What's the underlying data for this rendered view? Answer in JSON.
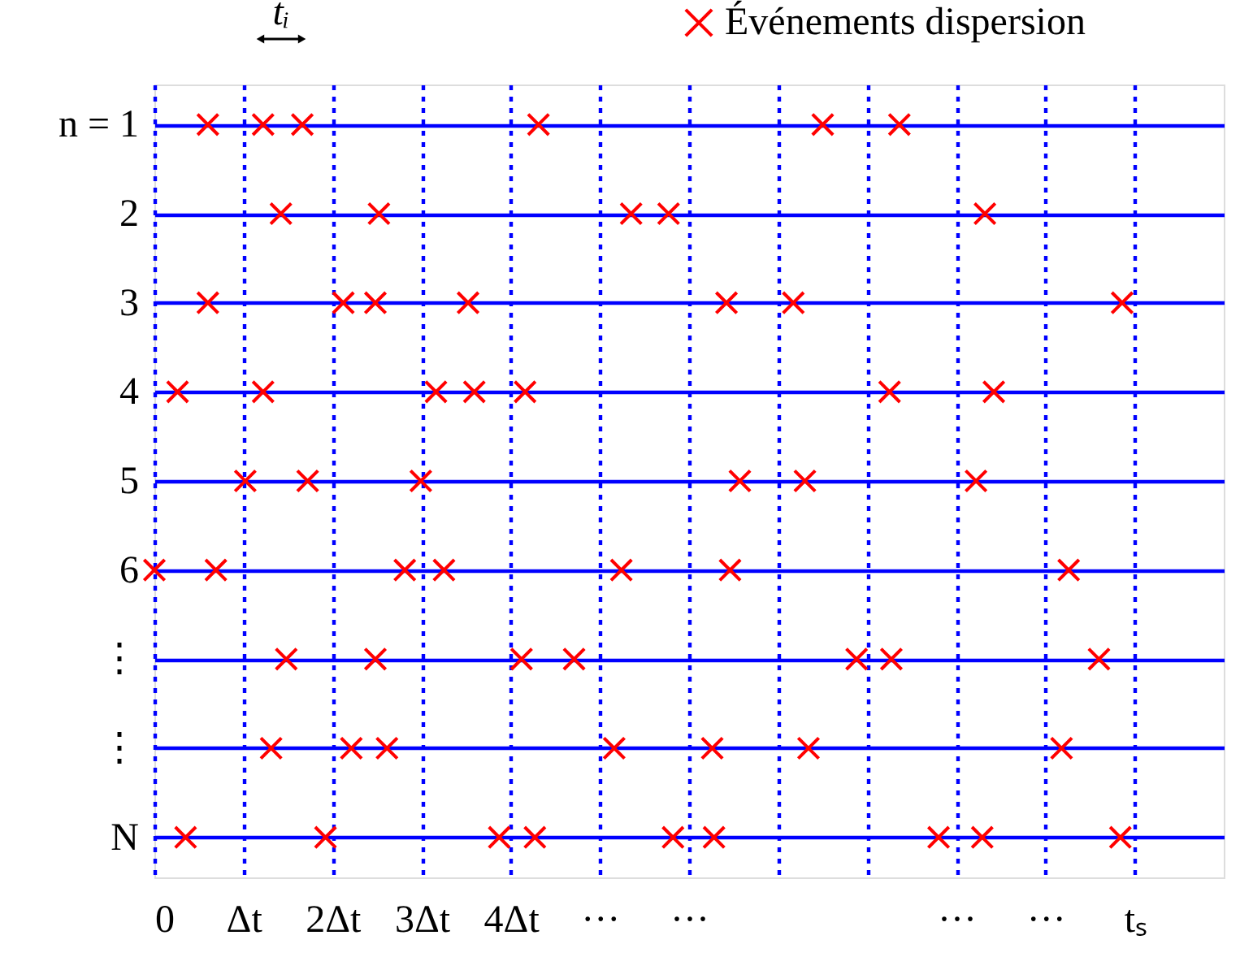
{
  "chart_data": {
    "type": "scatter",
    "xlim": [
      0,
      12
    ],
    "ylim": [
      9.45,
      0.55
    ],
    "xticks": [
      0,
      {
        "value": 1,
        "label": "Δt"
      },
      {
        "value": 2,
        "label": "2Δt"
      },
      {
        "value": 3,
        "label": "3Δt"
      },
      {
        "value": 4,
        "label": "4Δt"
      },
      {
        "value": 5,
        "label": "···"
      },
      {
        "value": 6,
        "label": "···"
      },
      {
        "value": 7,
        "label": null
      },
      {
        "value": 8,
        "label": null
      },
      {
        "value": 9,
        "label": "···"
      },
      {
        "value": 10,
        "label": "···"
      },
      {
        "value": 11,
        "label": "tₛ"
      }
    ],
    "yticks": [
      {
        "value": 1,
        "label": "n = 1"
      },
      2,
      3,
      4,
      5,
      6,
      {
        "value": 7,
        "label": "⋮"
      },
      {
        "value": 8,
        "label": "⋮"
      },
      {
        "value": 9,
        "label": "N"
      }
    ],
    "series": [
      {
        "name": "Événements dispersion",
        "color": "#ff0000",
        "x": [
          0.6,
          1.22,
          1.66,
          4.31,
          7.5,
          8.36,
          1.42,
          2.52,
          5.35,
          5.77,
          9.32,
          0.6,
          2.12,
          2.48,
          3.52,
          6.42,
          7.17,
          10.86,
          0.26,
          1.22,
          3.16,
          3.59,
          4.16,
          8.25,
          9.42,
          1.02,
          1.72,
          2.99,
          6.57,
          7.3,
          9.22,
          0,
          0.69,
          2.81,
          3.25,
          5.24,
          6.46,
          10.26,
          1.48,
          2.48,
          4.12,
          4.71,
          7.88,
          8.27,
          10.6,
          1.31,
          2.21,
          2.61,
          5.16,
          6.26,
          7.34,
          10.18,
          0.35,
          1.92,
          3.87,
          4.27,
          5.82,
          6.28,
          8.8,
          9.29,
          10.84
        ],
        "values": [
          1,
          1,
          1,
          1,
          1,
          1,
          2,
          2,
          2,
          2,
          2,
          3,
          3,
          3,
          3,
          3,
          3,
          3,
          4,
          4,
          4,
          4,
          4,
          4,
          4,
          5,
          5,
          5,
          5,
          5,
          5,
          6,
          6,
          6,
          6,
          6,
          6,
          6,
          7,
          7,
          7,
          7,
          7,
          7,
          7,
          8,
          8,
          8,
          8,
          8,
          8,
          8,
          9,
          9,
          9,
          9,
          9,
          9,
          9,
          9,
          9
        ]
      }
    ],
    "marker": "cross",
    "legend": "top right",
    "grid": true,
    "annotations": [
      "tᵢ"
    ]
  }
}
